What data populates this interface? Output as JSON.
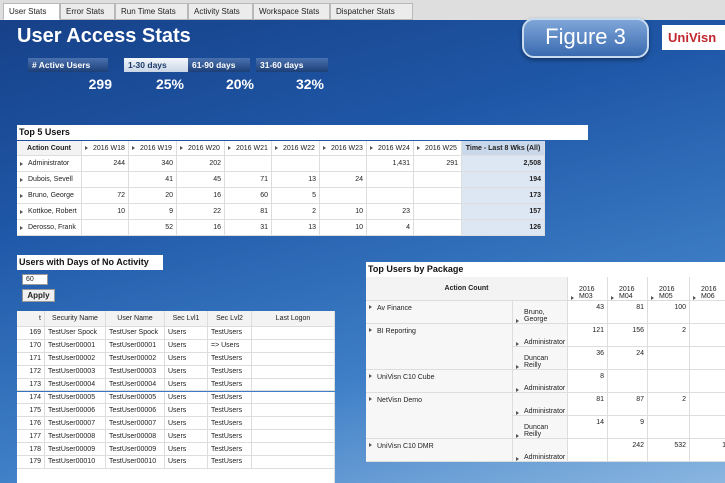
{
  "tabs": [
    "User Stats",
    "Error Stats",
    "Run Time Stats",
    "Activity Stats",
    "Workspace Stats",
    "Dispatcher Stats"
  ],
  "header": {
    "title": "User Access Stats",
    "badge": "Figure 3",
    "logo": "UniVisn"
  },
  "stats": [
    {
      "label": "# Active Users",
      "value": "299"
    },
    {
      "label": "1-30 days",
      "value": "25%"
    },
    {
      "label": "61-90 days",
      "value": "20%"
    },
    {
      "label": "31-60 days",
      "value": "32%"
    }
  ],
  "top_users": {
    "title": "Top 5 Users",
    "corner": "Action Count",
    "columns": [
      "2016 W18",
      "2016 W19",
      "2016 W20",
      "2016 W21",
      "2016 W22",
      "2016 W23",
      "2016 W24",
      "2016 W25"
    ],
    "total_label": "Time - Last 8 Wks (All)",
    "rows": [
      {
        "name": "Administrator",
        "values": [
          "244",
          "340",
          "202",
          null,
          null,
          null,
          "1,431",
          "291"
        ],
        "total": "2,508"
      },
      {
        "name": "Dubois, Sevell",
        "values": [
          null,
          "41",
          "45",
          "71",
          "13",
          "24",
          null,
          null
        ],
        "total": "194"
      },
      {
        "name": "Bruno, George",
        "values": [
          "72",
          "20",
          "16",
          "60",
          "5",
          null,
          null,
          null
        ],
        "total": "173"
      },
      {
        "name": "Kottkoe, Robert",
        "values": [
          "10",
          "9",
          "22",
          "81",
          "2",
          "10",
          "23",
          null
        ],
        "total": "157"
      },
      {
        "name": "Derosso, Frank",
        "values": [
          null,
          "52",
          "16",
          "31",
          "13",
          "10",
          "4",
          null
        ],
        "total": "126"
      }
    ]
  },
  "inactive": {
    "title": "Users with Days of No Activity",
    "days": "60",
    "button": "Apply",
    "columns": [
      "t",
      "Security Name",
      "User Name",
      "Sec Lvl1",
      "Sec Lvl2",
      "Last Logon"
    ],
    "rows": [
      [
        "169",
        "TestUser Spock",
        "TestUser Spock",
        "Users",
        "TestUsers"
      ],
      [
        "170",
        "TestUser00001",
        "TestUser00001",
        "Users",
        "=> Users"
      ],
      [
        "171",
        "TestUser00002",
        "TestUser00002",
        "Users",
        "TestUsers"
      ],
      [
        "172",
        "TestUser00003",
        "TestUser00003",
        "Users",
        "TestUsers"
      ],
      [
        "173",
        "TestUser00004",
        "TestUser00004",
        "Users",
        "TestUsers"
      ],
      [
        "174",
        "TestUser00005",
        "TestUser00005",
        "Users",
        "TestUsers"
      ],
      [
        "175",
        "TestUser00006",
        "TestUser00006",
        "Users",
        "TestUsers"
      ],
      [
        "176",
        "TestUser00007",
        "TestUser00007",
        "Users",
        "TestUsers"
      ],
      [
        "177",
        "TestUser00008",
        "TestUser00008",
        "Users",
        "TestUsers"
      ],
      [
        "178",
        "TestUser00009",
        "TestUser00009",
        "Users",
        "TestUsers"
      ],
      [
        "179",
        "TestUser00010",
        "TestUser00010",
        "Users",
        "TestUsers"
      ]
    ]
  },
  "packages": {
    "title": "Top Users by Package",
    "corner": "Action Count",
    "columns": [
      "2016 M03",
      "2016 M04",
      "2016 M05",
      "2016 M06"
    ],
    "groups": [
      {
        "name": "Av Finance",
        "users": [
          {
            "name": "Bruno, George",
            "values": [
              "43",
              "81",
              "100",
              null
            ]
          }
        ]
      },
      {
        "name": "BI Reporting",
        "users": [
          {
            "name": "Administrator",
            "values": [
              "121",
              "156",
              "2",
              null
            ]
          },
          {
            "name": "Duncan Reilly",
            "values": [
              "36",
              "24",
              null,
              null
            ]
          }
        ]
      },
      {
        "name": "UniVisn C10 Cube",
        "users": [
          {
            "name": "Administrator",
            "values": [
              "8",
              null,
              null,
              null
            ]
          }
        ]
      },
      {
        "name": "NetVisn Demo",
        "users": [
          {
            "name": "Administrator",
            "values": [
              "81",
              "87",
              "2",
              null
            ]
          },
          {
            "name": "Duncan Reilly",
            "values": [
              "14",
              "9",
              null,
              null
            ]
          }
        ]
      },
      {
        "name": "UniVisn C10 DMR",
        "users": [
          {
            "name": "Administrator",
            "values": [
              null,
              "242",
              "532",
              "1"
            ]
          }
        ]
      }
    ]
  }
}
